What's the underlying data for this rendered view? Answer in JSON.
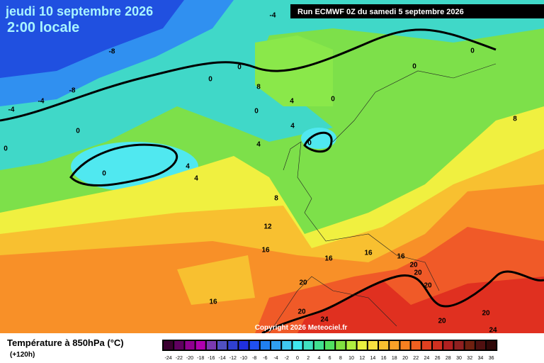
{
  "header": {
    "date": "jeudi 10 septembre 2026",
    "time": "2:00 locale",
    "run": "Run ECMWF 0Z du samedi 5 septembre 2026"
  },
  "copyright": "Copyright 2026 Meteociel.fr",
  "footer": {
    "title": "Température à 850hPa (°C)",
    "lead": "(+120h)"
  },
  "contour_labels": [
    "-4",
    "-8",
    "-8",
    "-4",
    "-4",
    "0",
    "0",
    "0",
    "0",
    "0",
    "0",
    "0",
    "0",
    "0",
    "0",
    "8",
    "4",
    "4",
    "4",
    "4",
    "4",
    "8",
    "8",
    "12",
    "16",
    "16",
    "16",
    "16",
    "16",
    "20",
    "20",
    "20",
    "20",
    "20",
    "20",
    "20",
    "24",
    "24"
  ],
  "colorbar": {
    "ticks": [
      -24,
      -22,
      -20,
      -18,
      -16,
      -14,
      -12,
      -10,
      -8,
      -6,
      -4,
      -2,
      0,
      2,
      4,
      6,
      8,
      10,
      12,
      14,
      16,
      18,
      20,
      22,
      24,
      26,
      28,
      30,
      32,
      34,
      36
    ],
    "colors": [
      "#3a0030",
      "#600060",
      "#900090",
      "#b000b0",
      "#7a3ab0",
      "#5050c0",
      "#3040d0",
      "#2030e0",
      "#2050f0",
      "#2080f0",
      "#30a0f0",
      "#40c8f0",
      "#40e8f0",
      "#40e0c0",
      "#40e090",
      "#50e060",
      "#80e040",
      "#b0f040",
      "#e8f040",
      "#f8e040",
      "#f8c030",
      "#f8a028",
      "#f88020",
      "#f06020",
      "#e04020",
      "#d03020",
      "#b02020",
      "#902020",
      "#702010",
      "#501010",
      "#300808"
    ]
  }
}
